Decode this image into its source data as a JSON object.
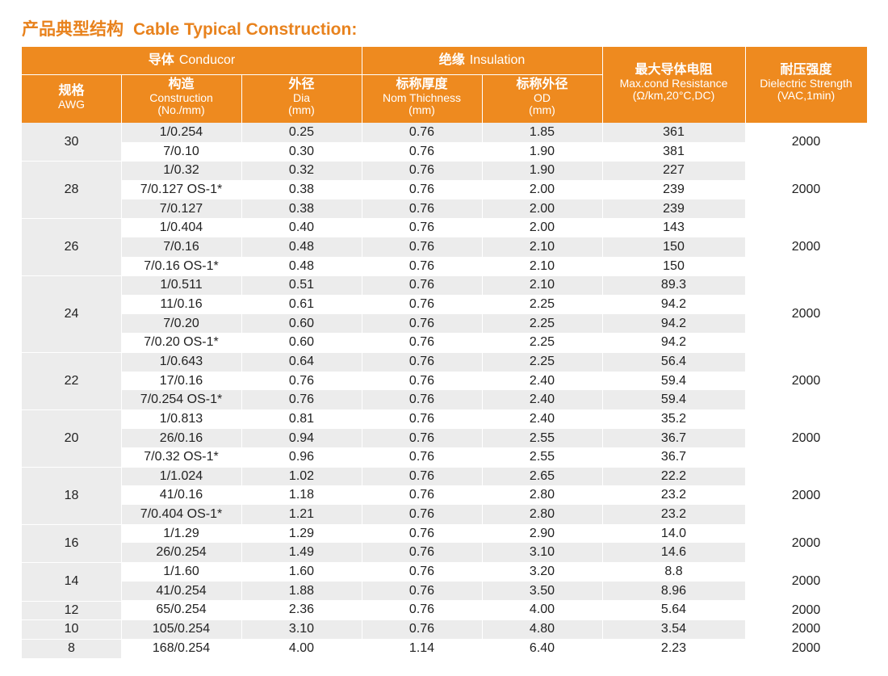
{
  "title": {
    "zh": "产品典型结构",
    "en": "Cable Typical Construction:"
  },
  "header": {
    "conductor_group": {
      "zh": "导体",
      "en": "Conducor"
    },
    "insulation_group": {
      "zh": "绝缘",
      "en": "Insulation"
    },
    "awg": {
      "zh": "规格",
      "en": "AWG"
    },
    "construction": {
      "zh": "构造",
      "en": "Construction",
      "unit": "(No./mm)"
    },
    "dia": {
      "zh": "外径",
      "en": "Dia",
      "unit": "(mm)"
    },
    "thickness": {
      "zh": "标称厚度",
      "en": "Nom Thichness",
      "unit": "(mm)"
    },
    "od": {
      "zh": "标称外径",
      "en": "OD",
      "unit": "(mm)"
    },
    "resistance": {
      "zh": "最大导体电阻",
      "en": "Max.cond Resistance",
      "unit": "(Ω/km,20°C,DC)"
    },
    "dielectric": {
      "zh": "耐压强度",
      "en": "Dielectric Strength",
      "unit": "(VAC,1min)"
    }
  },
  "groups": [
    {
      "awg": "30",
      "voltage": "2000",
      "rows": [
        {
          "construction": "1/0.254",
          "dia": "0.25",
          "thickness": "0.76",
          "od": "1.85",
          "resistance": "361"
        },
        {
          "construction": "7/0.10",
          "dia": "0.30",
          "thickness": "0.76",
          "od": "1.90",
          "resistance": "381"
        }
      ]
    },
    {
      "awg": "28",
      "voltage": "2000",
      "rows": [
        {
          "construction": "1/0.32",
          "dia": "0.32",
          "thickness": "0.76",
          "od": "1.90",
          "resistance": "227"
        },
        {
          "construction": "7/0.127 OS-1*",
          "dia": "0.38",
          "thickness": "0.76",
          "od": "2.00",
          "resistance": "239"
        },
        {
          "construction": "7/0.127",
          "dia": "0.38",
          "thickness": "0.76",
          "od": "2.00",
          "resistance": "239"
        }
      ]
    },
    {
      "awg": "26",
      "voltage": "2000",
      "rows": [
        {
          "construction": "1/0.404",
          "dia": "0.40",
          "thickness": "0.76",
          "od": "2.00",
          "resistance": "143"
        },
        {
          "construction": "7/0.16",
          "dia": "0.48",
          "thickness": "0.76",
          "od": "2.10",
          "resistance": "150"
        },
        {
          "construction": "7/0.16 OS-1*",
          "dia": "0.48",
          "thickness": "0.76",
          "od": "2.10",
          "resistance": "150"
        }
      ]
    },
    {
      "awg": "24",
      "voltage": "2000",
      "rows": [
        {
          "construction": "1/0.511",
          "dia": "0.51",
          "thickness": "0.76",
          "od": "2.10",
          "resistance": "89.3"
        },
        {
          "construction": "11/0.16",
          "dia": "0.61",
          "thickness": "0.76",
          "od": "2.25",
          "resistance": "94.2"
        },
        {
          "construction": "7/0.20",
          "dia": "0.60",
          "thickness": "0.76",
          "od": "2.25",
          "resistance": "94.2"
        },
        {
          "construction": "7/0.20 OS-1*",
          "dia": "0.60",
          "thickness": "0.76",
          "od": "2.25",
          "resistance": "94.2"
        }
      ]
    },
    {
      "awg": "22",
      "voltage": "2000",
      "rows": [
        {
          "construction": "1/0.643",
          "dia": "0.64",
          "thickness": "0.76",
          "od": "2.25",
          "resistance": "56.4"
        },
        {
          "construction": "17/0.16",
          "dia": "0.76",
          "thickness": "0.76",
          "od": "2.40",
          "resistance": "59.4"
        },
        {
          "construction": "7/0.254 OS-1*",
          "dia": "0.76",
          "thickness": "0.76",
          "od": "2.40",
          "resistance": "59.4"
        }
      ]
    },
    {
      "awg": "20",
      "voltage": "2000",
      "rows": [
        {
          "construction": "1/0.813",
          "dia": "0.81",
          "thickness": "0.76",
          "od": "2.40",
          "resistance": "35.2"
        },
        {
          "construction": "26/0.16",
          "dia": "0.94",
          "thickness": "0.76",
          "od": "2.55",
          "resistance": "36.7"
        },
        {
          "construction": "7/0.32 OS-1*",
          "dia": "0.96",
          "thickness": "0.76",
          "od": "2.55",
          "resistance": "36.7"
        }
      ]
    },
    {
      "awg": "18",
      "voltage": "2000",
      "rows": [
        {
          "construction": "1/1.024",
          "dia": "1.02",
          "thickness": "0.76",
          "od": "2.65",
          "resistance": "22.2"
        },
        {
          "construction": "41/0.16",
          "dia": "1.18",
          "thickness": "0.76",
          "od": "2.80",
          "resistance": "23.2"
        },
        {
          "construction": "7/0.404 OS-1*",
          "dia": "1.21",
          "thickness": "0.76",
          "od": "2.80",
          "resistance": "23.2"
        }
      ]
    },
    {
      "awg": "16",
      "voltage": "2000",
      "rows": [
        {
          "construction": "1/1.29",
          "dia": "1.29",
          "thickness": "0.76",
          "od": "2.90",
          "resistance": "14.0"
        },
        {
          "construction": "26/0.254",
          "dia": "1.49",
          "thickness": "0.76",
          "od": "3.10",
          "resistance": "14.6"
        }
      ]
    },
    {
      "awg": "14",
      "voltage": "2000",
      "rows": [
        {
          "construction": "1/1.60",
          "dia": "1.60",
          "thickness": "0.76",
          "od": "3.20",
          "resistance": "8.8"
        },
        {
          "construction": "41/0.254",
          "dia": "1.88",
          "thickness": "0.76",
          "od": "3.50",
          "resistance": "8.96"
        }
      ]
    },
    {
      "awg": "12",
      "voltage": "2000",
      "rows": [
        {
          "construction": "65/0.254",
          "dia": "2.36",
          "thickness": "0.76",
          "od": "4.00",
          "resistance": "5.64"
        }
      ]
    },
    {
      "awg": "10",
      "voltage": "2000",
      "rows": [
        {
          "construction": "105/0.254",
          "dia": "3.10",
          "thickness": "0.76",
          "od": "4.80",
          "resistance": "3.54"
        }
      ]
    },
    {
      "awg": "8",
      "voltage": "2000",
      "rows": [
        {
          "construction": "168/0.254",
          "dia": "4.00",
          "thickness": "1.14",
          "od": "6.40",
          "resistance": "2.23"
        }
      ]
    }
  ]
}
